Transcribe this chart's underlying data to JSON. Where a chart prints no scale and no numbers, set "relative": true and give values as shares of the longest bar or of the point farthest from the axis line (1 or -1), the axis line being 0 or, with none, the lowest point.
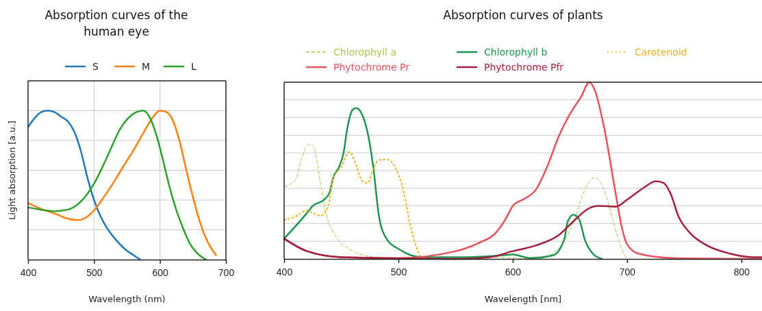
{
  "chart_data": [
    {
      "type": "line",
      "title": "Absorption curves of the human eye",
      "xlabel": "Wavelength (nm)",
      "ylabel": "Light absorption [a.u.]",
      "relative": true,
      "xlim": [
        400,
        700
      ],
      "xticks": [
        400,
        500,
        600,
        700
      ],
      "grid": true,
      "legend": "top",
      "line_style": "solid",
      "marker": "none",
      "series": [
        {
          "name": "S",
          "color": "#1f77b4",
          "x": [
            400,
            410,
            420,
            430,
            440,
            450,
            460,
            470,
            480,
            490,
            500,
            510,
            520,
            530,
            540,
            550,
            560,
            570
          ],
          "values": [
            0.89,
            0.95,
            0.99,
            1.0,
            0.99,
            0.96,
            0.93,
            0.86,
            0.73,
            0.55,
            0.4,
            0.29,
            0.21,
            0.15,
            0.1,
            0.06,
            0.03,
            0.0
          ]
        },
        {
          "name": "M",
          "color": "#ff7f0e",
          "x": [
            400,
            420,
            440,
            460,
            475,
            490,
            500,
            515,
            530,
            545,
            560,
            580,
            590,
            600,
            610,
            620,
            630,
            640,
            650,
            660,
            670,
            685
          ],
          "values": [
            0.38,
            0.34,
            0.31,
            0.275,
            0.265,
            0.29,
            0.33,
            0.42,
            0.52,
            0.63,
            0.735,
            0.89,
            0.96,
            1.0,
            0.99,
            0.93,
            0.79,
            0.6,
            0.42,
            0.26,
            0.14,
            0.03
          ]
        },
        {
          "name": "L",
          "color": "#2ca02c",
          "x": [
            400,
            420,
            440,
            460,
            480,
            500,
            520,
            540,
            560,
            575,
            585,
            595,
            605,
            615,
            625,
            635,
            645,
            655,
            670
          ],
          "values": [
            0.35,
            0.335,
            0.325,
            0.335,
            0.39,
            0.51,
            0.69,
            0.88,
            0.98,
            1.0,
            0.95,
            0.83,
            0.66,
            0.48,
            0.33,
            0.21,
            0.11,
            0.05,
            0.0
          ]
        }
      ]
    },
    {
      "type": "line",
      "title": "Absorption curves of plants",
      "xlabel": "Wavelength [nm]",
      "relative": true,
      "xlim": [
        400,
        818
      ],
      "xticks": [
        400,
        500,
        600,
        700,
        800
      ],
      "grid": "y",
      "legend": "top",
      "marker": "none",
      "series": [
        {
          "name": "Chlorophyll a",
          "color": "#a8c94a",
          "line_style": "dashed",
          "x": [
            400,
            405,
            410,
            415,
            420,
            423,
            427,
            432,
            437,
            445,
            460,
            480,
            520,
            580,
            620,
            635,
            645,
            655,
            663,
            672,
            680,
            688,
            695,
            700
          ],
          "values": [
            0.41,
            0.42,
            0.45,
            0.56,
            0.64,
            0.65,
            0.61,
            0.42,
            0.25,
            0.13,
            0.045,
            0.01,
            0.0,
            0.01,
            0.0,
            0.03,
            0.1,
            0.24,
            0.39,
            0.46,
            0.39,
            0.21,
            0.06,
            0.0
          ]
        },
        {
          "name": "Chlorophyll b",
          "color": "#1e9450",
          "line_style": "solid",
          "x": [
            400,
            420,
            425,
            435,
            440,
            443,
            448,
            452,
            455,
            460,
            463,
            468,
            473,
            478,
            483,
            490,
            500,
            520,
            560,
            590,
            600,
            615,
            635,
            645,
            648,
            653,
            658,
            663,
            670,
            678
          ],
          "values": [
            0.115,
            0.26,
            0.3,
            0.335,
            0.38,
            0.46,
            0.52,
            0.6,
            0.73,
            0.845,
            0.854,
            0.82,
            0.716,
            0.52,
            0.24,
            0.11,
            0.057,
            0.01,
            0.01,
            0.02,
            0.025,
            0.005,
            0.02,
            0.11,
            0.21,
            0.25,
            0.225,
            0.11,
            0.03,
            0.0
          ]
        },
        {
          "name": "Carotenoid",
          "color": "#f0b323",
          "line_style": "dotted",
          "x": [
            400,
            410,
            420,
            425,
            432,
            438,
            443,
            450,
            457,
            462,
            468,
            473,
            478,
            483,
            490,
            497,
            505,
            510,
            515,
            520,
            525
          ],
          "values": [
            0.22,
            0.24,
            0.275,
            0.26,
            0.245,
            0.29,
            0.457,
            0.52,
            0.606,
            0.55,
            0.444,
            0.43,
            0.51,
            0.56,
            0.563,
            0.52,
            0.37,
            0.2,
            0.08,
            0.01,
            0.0
          ]
        },
        {
          "name": "Phytochrome Pr",
          "color": "#e8505b",
          "line_style": "solid",
          "x": [
            400,
            420,
            450,
            500,
            550,
            570,
            585,
            595,
            600,
            610,
            620,
            630,
            640,
            650,
            660,
            667,
            672,
            680,
            690,
            695,
            700,
            710,
            740,
            818
          ],
          "values": [
            0.115,
            0.044,
            0.01,
            0.005,
            0.044,
            0.09,
            0.147,
            0.24,
            0.3,
            0.34,
            0.39,
            0.52,
            0.69,
            0.82,
            0.92,
            1.0,
            0.95,
            0.74,
            0.37,
            0.19,
            0.083,
            0.03,
            0.005,
            0.0
          ]
        },
        {
          "name": "Phytochrome Pfr",
          "color": "#a51c3c",
          "line_style": "solid",
          "x": [
            400,
            420,
            450,
            500,
            550,
            580,
            600,
            620,
            640,
            655,
            665,
            675,
            690,
            700,
            715,
            725,
            732,
            738,
            745,
            755,
            770,
            790,
            810,
            818
          ],
          "values": [
            0.115,
            0.044,
            0.01,
            0.003,
            0.0,
            0.01,
            0.044,
            0.076,
            0.134,
            0.225,
            0.28,
            0.3,
            0.296,
            0.335,
            0.405,
            0.44,
            0.43,
            0.37,
            0.24,
            0.147,
            0.076,
            0.03,
            0.01,
            0.01
          ]
        }
      ]
    }
  ]
}
